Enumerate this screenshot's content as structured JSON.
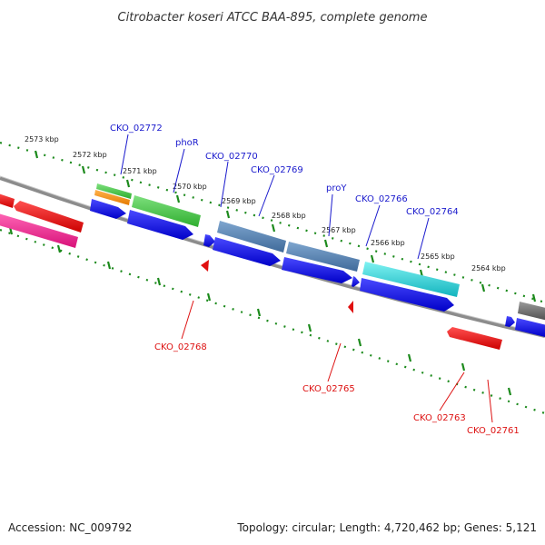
{
  "title": "Citrobacter koseri ATCC BAA-895, complete genome",
  "footer": {
    "accession": "Accession: NC_009792",
    "summary": "Topology: circular; Length: 4,720,462 bp; Genes: 5,121"
  },
  "colors": {
    "backbone": "#888888",
    "ticks": "#1c8a1c",
    "forward_label": "#1a1acd",
    "reverse_label": "#dd1111"
  },
  "kbp_ticks": [
    {
      "label": "2573 kbp"
    },
    {
      "label": "2572 kbp"
    },
    {
      "label": "2571 kbp"
    },
    {
      "label": "2570 kbp"
    },
    {
      "label": "2569 kbp"
    },
    {
      "label": "2568 kbp"
    },
    {
      "label": "2567 kbp"
    },
    {
      "label": "2566 kbp"
    },
    {
      "label": "2565 kbp"
    },
    {
      "label": "2564 kbp"
    }
  ],
  "forward_labels": [
    {
      "label": "CKO_02772"
    },
    {
      "label": "phoR"
    },
    {
      "label": "CKO_02770"
    },
    {
      "label": "CKO_02769"
    },
    {
      "label": "proY"
    },
    {
      "label": "CKO_02766"
    },
    {
      "label": "CKO_02764"
    }
  ],
  "reverse_labels": [
    {
      "label": "CKO_02768"
    },
    {
      "label": "CKO_02765"
    },
    {
      "label": "CKO_02763"
    },
    {
      "label": "CKO_02761"
    }
  ]
}
